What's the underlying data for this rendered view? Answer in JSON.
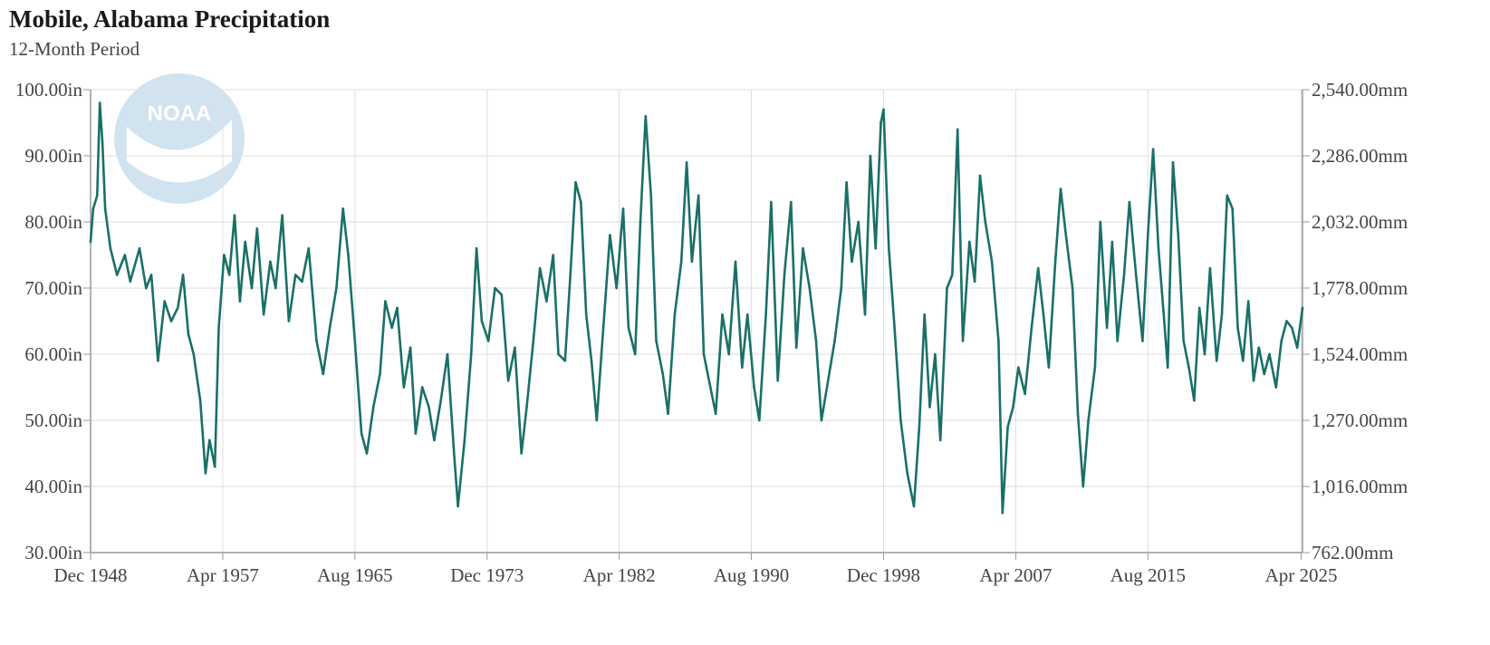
{
  "chart_data": {
    "type": "line",
    "title": "Mobile, Alabama Precipitation",
    "subtitle": "12-Month Period",
    "xlabel": "",
    "ylabel": "",
    "logo": "NOAA",
    "x_ticks": [
      "Dec 1948",
      "Apr 1957",
      "Aug 1965",
      "Dec 1973",
      "Apr 1982",
      "Aug 1990",
      "Dec 1998",
      "Apr 2007",
      "Aug 2015",
      "Apr 2025"
    ],
    "y_ticks_left": [
      "30.00in",
      "40.00in",
      "50.00in",
      "60.00in",
      "70.00in",
      "80.00in",
      "90.00in",
      "100.00in"
    ],
    "y_ticks_right": [
      "762.00mm",
      "1,016.00mm",
      "1,270.00mm",
      "1,524.00mm",
      "1,778.00mm",
      "2,032.00mm",
      "2,286.00mm",
      "2,540.00mm"
    ],
    "ylim": [
      30,
      100
    ],
    "ylim_right": [
      762,
      2540
    ],
    "xlim": [
      "1948-12",
      "2025-05"
    ],
    "grid": true,
    "legend": "none",
    "series": [
      {
        "color": "#1a7068",
        "points": [
          [
            "1948-12",
            77
          ],
          [
            "1949-02",
            82
          ],
          [
            "1949-05",
            84
          ],
          [
            "1949-07",
            98
          ],
          [
            "1949-09",
            92
          ],
          [
            "1949-11",
            82
          ],
          [
            "1950-03",
            76
          ],
          [
            "1950-08",
            72
          ],
          [
            "1951-02",
            75
          ],
          [
            "1951-06",
            71
          ],
          [
            "1952-01",
            76
          ],
          [
            "1952-06",
            70
          ],
          [
            "1952-10",
            72
          ],
          [
            "1953-03",
            59
          ],
          [
            "1953-08",
            68
          ],
          [
            "1954-01",
            65
          ],
          [
            "1954-06",
            67
          ],
          [
            "1954-10",
            72
          ],
          [
            "1955-02",
            63
          ],
          [
            "1955-06",
            60
          ],
          [
            "1955-11",
            53
          ],
          [
            "1956-03",
            42
          ],
          [
            "1956-06",
            47
          ],
          [
            "1956-10",
            43
          ],
          [
            "1957-01",
            64
          ],
          [
            "1957-05",
            75
          ],
          [
            "1957-09",
            72
          ],
          [
            "1958-01",
            81
          ],
          [
            "1958-05",
            68
          ],
          [
            "1958-09",
            77
          ],
          [
            "1959-02",
            70
          ],
          [
            "1959-06",
            79
          ],
          [
            "1959-11",
            66
          ],
          [
            "1960-04",
            74
          ],
          [
            "1960-08",
            70
          ],
          [
            "1961-01",
            81
          ],
          [
            "1961-06",
            65
          ],
          [
            "1961-11",
            72
          ],
          [
            "1962-04",
            71
          ],
          [
            "1962-09",
            76
          ],
          [
            "1963-03",
            62
          ],
          [
            "1963-08",
            57
          ],
          [
            "1964-01",
            64
          ],
          [
            "1964-06",
            70
          ],
          [
            "1964-11",
            82
          ],
          [
            "1965-03",
            75
          ],
          [
            "1965-08",
            62
          ],
          [
            "1966-01",
            48
          ],
          [
            "1966-05",
            45
          ],
          [
            "1966-10",
            52
          ],
          [
            "1967-03",
            57
          ],
          [
            "1967-07",
            68
          ],
          [
            "1967-12",
            64
          ],
          [
            "1968-04",
            67
          ],
          [
            "1968-09",
            55
          ],
          [
            "1969-02",
            61
          ],
          [
            "1969-06",
            48
          ],
          [
            "1969-11",
            55
          ],
          [
            "1970-04",
            52
          ],
          [
            "1970-08",
            47
          ],
          [
            "1971-01",
            53
          ],
          [
            "1971-06",
            60
          ],
          [
            "1971-11",
            45
          ],
          [
            "1972-02",
            37
          ],
          [
            "1972-07",
            47
          ],
          [
            "1972-12",
            60
          ],
          [
            "1973-04",
            76
          ],
          [
            "1973-08",
            65
          ],
          [
            "1974-01",
            62
          ],
          [
            "1974-06",
            70
          ],
          [
            "1974-11",
            69
          ],
          [
            "1975-04",
            56
          ],
          [
            "1975-09",
            61
          ],
          [
            "1976-02",
            45
          ],
          [
            "1976-06",
            52
          ],
          [
            "1976-11",
            62
          ],
          [
            "1977-04",
            73
          ],
          [
            "1977-09",
            68
          ],
          [
            "1978-02",
            75
          ],
          [
            "1978-06",
            60
          ],
          [
            "1978-11",
            59
          ],
          [
            "1979-03",
            72
          ],
          [
            "1979-07",
            86
          ],
          [
            "1979-11",
            83
          ],
          [
            "1980-03",
            66
          ],
          [
            "1980-07",
            59
          ],
          [
            "1980-11",
            50
          ],
          [
            "1981-04",
            64
          ],
          [
            "1981-09",
            78
          ],
          [
            "1982-02",
            70
          ],
          [
            "1982-07",
            82
          ],
          [
            "1982-11",
            64
          ],
          [
            "1983-04",
            60
          ],
          [
            "1983-08",
            80
          ],
          [
            "1983-12",
            96
          ],
          [
            "1984-04",
            84
          ],
          [
            "1984-08",
            62
          ],
          [
            "1985-01",
            57
          ],
          [
            "1985-05",
            51
          ],
          [
            "1985-10",
            66
          ],
          [
            "1986-03",
            74
          ],
          [
            "1986-07",
            89
          ],
          [
            "1986-11",
            74
          ],
          [
            "1987-04",
            84
          ],
          [
            "1987-08",
            60
          ],
          [
            "1988-01",
            55
          ],
          [
            "1988-05",
            51
          ],
          [
            "1988-10",
            66
          ],
          [
            "1989-03",
            60
          ],
          [
            "1989-08",
            74
          ],
          [
            "1990-01",
            58
          ],
          [
            "1990-05",
            66
          ],
          [
            "1990-10",
            55
          ],
          [
            "1991-02",
            50
          ],
          [
            "1991-07",
            66
          ],
          [
            "1991-11",
            83
          ],
          [
            "1992-04",
            56
          ],
          [
            "1992-09",
            72
          ],
          [
            "1993-02",
            83
          ],
          [
            "1993-06",
            61
          ],
          [
            "1993-11",
            76
          ],
          [
            "1994-04",
            70
          ],
          [
            "1994-09",
            62
          ],
          [
            "1995-01",
            50
          ],
          [
            "1995-06",
            56
          ],
          [
            "1995-11",
            62
          ],
          [
            "1996-04",
            70
          ],
          [
            "1996-08",
            86
          ],
          [
            "1996-12",
            74
          ],
          [
            "1997-05",
            80
          ],
          [
            "1997-10",
            66
          ],
          [
            "1998-02",
            90
          ],
          [
            "1998-06",
            76
          ],
          [
            "1998-10",
            95
          ],
          [
            "1998-12",
            97
          ],
          [
            "1999-04",
            76
          ],
          [
            "1999-08",
            65
          ],
          [
            "2000-01",
            50
          ],
          [
            "2000-06",
            42
          ],
          [
            "2000-11",
            37
          ],
          [
            "2001-03",
            49
          ],
          [
            "2001-07",
            66
          ],
          [
            "2001-11",
            52
          ],
          [
            "2002-03",
            60
          ],
          [
            "2002-07",
            47
          ],
          [
            "2002-12",
            70
          ],
          [
            "2003-04",
            72
          ],
          [
            "2003-08",
            94
          ],
          [
            "2003-12",
            62
          ],
          [
            "2004-05",
            77
          ],
          [
            "2004-09",
            71
          ],
          [
            "2005-01",
            87
          ],
          [
            "2005-05",
            80
          ],
          [
            "2005-10",
            74
          ],
          [
            "2006-03",
            62
          ],
          [
            "2006-06",
            36
          ],
          [
            "2006-10",
            49
          ],
          [
            "2007-02",
            52
          ],
          [
            "2007-06",
            58
          ],
          [
            "2007-11",
            54
          ],
          [
            "2008-04",
            64
          ],
          [
            "2008-09",
            73
          ],
          [
            "2009-01",
            66
          ],
          [
            "2009-05",
            58
          ],
          [
            "2009-10",
            74
          ],
          [
            "2010-02",
            85
          ],
          [
            "2010-06",
            78
          ],
          [
            "2010-11",
            70
          ],
          [
            "2011-03",
            51
          ],
          [
            "2011-07",
            40
          ],
          [
            "2011-11",
            50
          ],
          [
            "2012-04",
            58
          ],
          [
            "2012-08",
            80
          ],
          [
            "2013-01",
            64
          ],
          [
            "2013-05",
            77
          ],
          [
            "2013-09",
            62
          ],
          [
            "2014-02",
            72
          ],
          [
            "2014-06",
            83
          ],
          [
            "2014-11",
            72
          ],
          [
            "2015-04",
            62
          ],
          [
            "2015-08",
            78
          ],
          [
            "2015-12",
            91
          ],
          [
            "2016-04",
            76
          ],
          [
            "2016-08",
            66
          ],
          [
            "2016-11",
            58
          ],
          [
            "2017-03",
            89
          ],
          [
            "2017-07",
            78
          ],
          [
            "2017-11",
            62
          ],
          [
            "2018-03",
            58
          ],
          [
            "2018-07",
            53
          ],
          [
            "2018-11",
            67
          ],
          [
            "2019-03",
            60
          ],
          [
            "2019-07",
            73
          ],
          [
            "2019-12",
            59
          ],
          [
            "2020-04",
            66
          ],
          [
            "2020-08",
            84
          ],
          [
            "2020-12",
            82
          ],
          [
            "2021-04",
            64
          ],
          [
            "2021-08",
            59
          ],
          [
            "2021-12",
            68
          ],
          [
            "2022-04",
            56
          ],
          [
            "2022-08",
            61
          ],
          [
            "2022-12",
            57
          ],
          [
            "2023-04",
            60
          ],
          [
            "2023-09",
            55
          ],
          [
            "2024-01",
            62
          ],
          [
            "2024-05",
            65
          ],
          [
            "2024-09",
            64
          ],
          [
            "2025-01",
            61
          ],
          [
            "2025-05",
            67
          ]
        ]
      }
    ]
  }
}
